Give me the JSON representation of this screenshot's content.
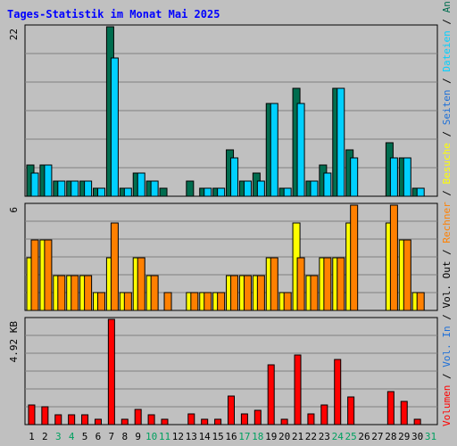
{
  "title": "Tages-Statistik im Monat Mai 2025",
  "chart_data": {
    "type": "bar",
    "x": [
      "1",
      "2",
      "3",
      "4",
      "5",
      "6",
      "7",
      "8",
      "9",
      "10",
      "11",
      "12",
      "13",
      "14",
      "15",
      "16",
      "17",
      "18",
      "19",
      "20",
      "21",
      "22",
      "23",
      "24",
      "25",
      "26",
      "27",
      "28",
      "29",
      "30",
      "31"
    ],
    "weekend_days": [
      "3",
      "4",
      "10",
      "11",
      "17",
      "18",
      "24",
      "25",
      "31"
    ],
    "panels": [
      {
        "id": "requests",
        "y_tick_label": "22",
        "ylim": [
          0,
          22
        ],
        "series": [
          {
            "name": "Anfragen",
            "color": "#006d4f",
            "values": [
              4,
              4,
              2,
              2,
              2,
              1,
              22,
              1,
              3,
              2,
              1,
              0,
              2,
              1,
              1,
              6,
              2,
              3,
              12,
              1,
              14,
              2,
              4,
              14,
              6,
              0,
              0,
              7,
              5,
              1,
              0
            ]
          },
          {
            "name": "Dateien",
            "color": "#00d0ff",
            "values": [
              3,
              4,
              2,
              2,
              2,
              1,
              18,
              1,
              3,
              2,
              0,
              0,
              0,
              1,
              1,
              5,
              2,
              2,
              12,
              1,
              12,
              2,
              3,
              14,
              5,
              0,
              0,
              5,
              5,
              1,
              0
            ]
          }
        ]
      },
      {
        "id": "visits",
        "y_tick_label": "6",
        "ylim": [
          0,
          6
        ],
        "series": [
          {
            "name": "Seiten",
            "color": "#1c6fd8",
            "values": []
          },
          {
            "name": "Besuche",
            "color": "#ffff00",
            "values": [
              3,
              4,
              2,
              2,
              2,
              1,
              3,
              1,
              3,
              2,
              0,
              0,
              1,
              1,
              1,
              2,
              2,
              2,
              3,
              1,
              5,
              2,
              3,
              3,
              5,
              0,
              0,
              5,
              4,
              1,
              0
            ]
          },
          {
            "name": "Rechner",
            "color": "#ff8000",
            "values": [
              4,
              4,
              2,
              2,
              2,
              1,
              5,
              1,
              3,
              2,
              1,
              0,
              1,
              1,
              1,
              2,
              2,
              2,
              3,
              1,
              3,
              2,
              3,
              3,
              6,
              0,
              0,
              6,
              4,
              1,
              0
            ]
          }
        ]
      },
      {
        "id": "volume",
        "y_tick_label": "4.92 KB",
        "ylim": [
          0,
          4.92
        ],
        "series": [
          {
            "name": "Volumen",
            "color": "#ff0000",
            "values": [
              0.9,
              0.85,
              0.45,
              0.45,
              0.45,
              0.25,
              4.92,
              0.25,
              0.7,
              0.45,
              0.25,
              0,
              0.5,
              0.25,
              0.25,
              1.35,
              0.5,
              0.65,
              2.8,
              0.25,
              3.25,
              0.5,
              0.9,
              3.05,
              1.3,
              0,
              0,
              1.55,
              1.1,
              0.25,
              0
            ]
          }
        ]
      }
    ],
    "right_legend": [
      {
        "text": "Anfragen",
        "color": "#006d4f"
      },
      {
        "text": " / ",
        "color": "#000000"
      },
      {
        "text": "Dateien",
        "color": "#00d0ff"
      },
      {
        "text": " / ",
        "color": "#000000"
      },
      {
        "text": "Seiten",
        "color": "#1c6fd8"
      },
      {
        "text": " / ",
        "color": "#000000"
      },
      {
        "text": "Besuche",
        "color": "#ffff00"
      },
      {
        "text": " / ",
        "color": "#000000"
      },
      {
        "text": "Rechner",
        "color": "#ff8000"
      },
      {
        "text": " / ",
        "color": "#000000"
      },
      {
        "text": "Vol. Out",
        "color": "#000000"
      },
      {
        "text": " / ",
        "color": "#000000"
      },
      {
        "text": "Vol. In",
        "color": "#1c6fd8"
      },
      {
        "text": " / ",
        "color": "#000000"
      },
      {
        "text": "Volumen",
        "color": "#ff0000"
      }
    ],
    "grid": true,
    "colors": {
      "background": "#c0c0c0",
      "grid": "#808080",
      "title": "#0000ff",
      "day_label": "#000000",
      "weekend_label": "#00a060"
    }
  }
}
